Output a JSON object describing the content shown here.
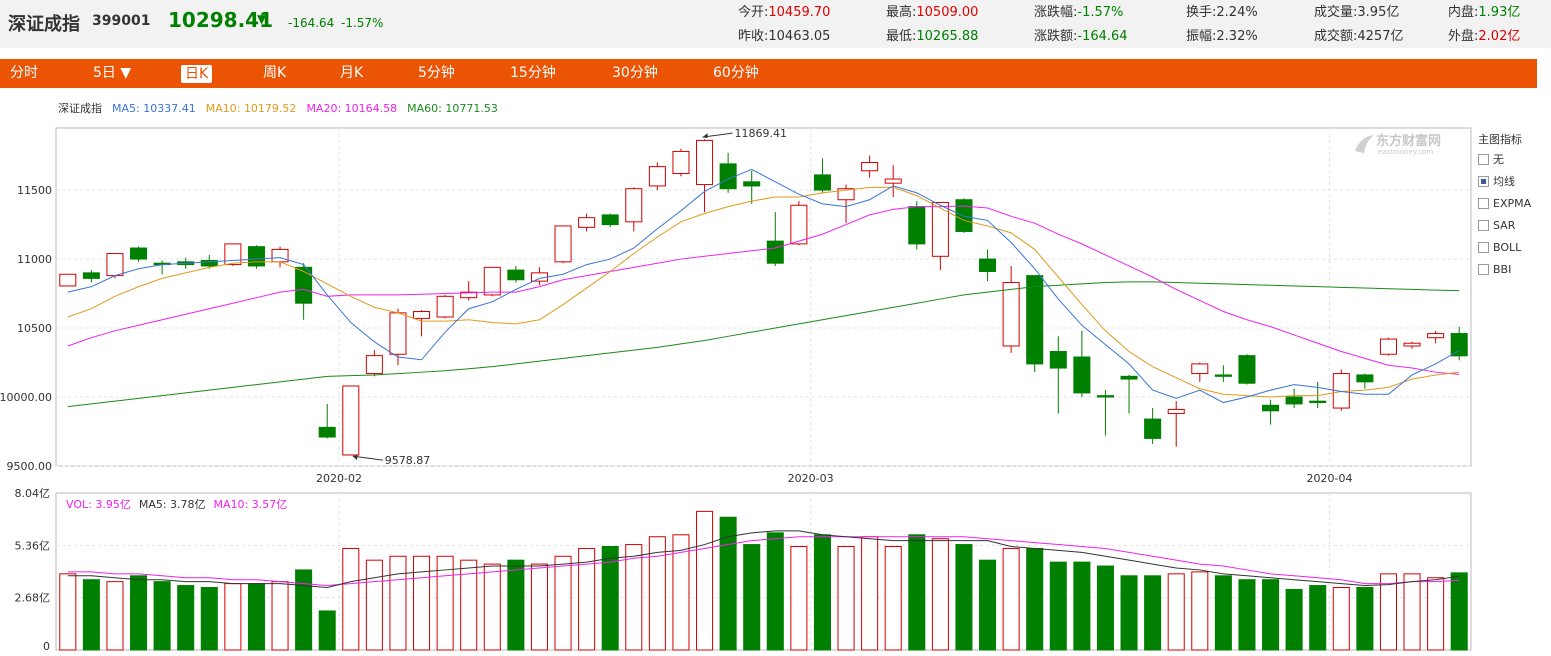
{
  "header": {
    "name": "深证成指",
    "code": "399001",
    "price": "10298.41",
    "arrow": "▼",
    "change": "-164.64",
    "change_pct": "-1.57%",
    "stats": [
      {
        "label": "今开:",
        "value": "10459.70",
        "color": "#e00000"
      },
      {
        "label": "最高:",
        "value": "10509.00",
        "color": "#e00000"
      },
      {
        "label": "涨跌幅:",
        "value": "-1.57%",
        "color": "#008000"
      },
      {
        "label": "换手:",
        "value": "2.24%",
        "color": "#333333"
      },
      {
        "label": "成交量:",
        "value": "3.95亿",
        "color": "#333333"
      },
      {
        "label": "内盘:",
        "value": "1.93亿",
        "color": "#008000"
      },
      {
        "label": "昨收:",
        "value": "10463.05",
        "color": "#333333"
      },
      {
        "label": "最低:",
        "value": "10265.88",
        "color": "#008000"
      },
      {
        "label": "涨跌额:",
        "value": "-164.64",
        "color": "#008000"
      },
      {
        "label": "振幅:",
        "value": "2.32%",
        "color": "#333333"
      },
      {
        "label": "成交额:",
        "value": "4257亿",
        "color": "#333333"
      },
      {
        "label": "外盘:",
        "value": "2.02亿",
        "color": "#e00000"
      }
    ]
  },
  "tabs": [
    {
      "label": "分时"
    },
    {
      "label": "5日 ▼"
    },
    {
      "label": "日K"
    },
    {
      "label": "周K"
    },
    {
      "label": "月K"
    },
    {
      "label": "5分钟"
    },
    {
      "label": "15分钟"
    },
    {
      "label": "30分钟"
    },
    {
      "label": "60分钟"
    }
  ],
  "indicator_panel": {
    "title": "主图指标",
    "items": [
      {
        "label": "无",
        "checked": false
      },
      {
        "label": "均线",
        "checked": true
      },
      {
        "label": "EXPMA",
        "checked": false
      },
      {
        "label": "SAR",
        "checked": false
      },
      {
        "label": "BOLL",
        "checked": false
      },
      {
        "label": "BBI",
        "checked": false
      }
    ]
  },
  "logo": {
    "text": "东方财富网",
    "subtext": "eastmoney.com"
  },
  "colors": {
    "up": "#d40000",
    "down": "#008000",
    "ma5": "#3a73d6",
    "ma10": "#e09a1a",
    "ma20": "#ee22ee",
    "ma60": "#1a8a1a",
    "vol_ma5": "#333333",
    "accent": "#ea5404"
  },
  "chart_data": [
    {
      "type": "candlestick",
      "title": "深证成指",
      "ylim": [
        9500,
        11950
      ],
      "yticks": [
        "9500.00",
        "10000.00",
        "10500",
        "11000",
        "11500"
      ],
      "x_labels": [
        {
          "label": "2020-02",
          "index": 11.5
        },
        {
          "label": "2020-03",
          "index": 31.5
        },
        {
          "label": "2020-04",
          "index": 53.5
        }
      ],
      "legend": [
        {
          "name": "MA5",
          "value": "10337.41"
        },
        {
          "name": "MA10",
          "value": "10179.52"
        },
        {
          "name": "MA20",
          "value": "10164.58"
        },
        {
          "name": "MA60",
          "value": "10771.53"
        }
      ],
      "annotations": [
        {
          "text": "11869.41",
          "index": 27,
          "value": 11869.41,
          "kind": "max"
        },
        {
          "text": "9578.87",
          "index": 12,
          "value": 9578.87,
          "kind": "min"
        }
      ],
      "candles": [
        {
          "o": 10805,
          "h": 10890,
          "l": 10805,
          "c": 10890
        },
        {
          "o": 10900,
          "h": 10920,
          "l": 10830,
          "c": 10860
        },
        {
          "o": 10880,
          "h": 11040,
          "l": 10860,
          "c": 11040
        },
        {
          "o": 11080,
          "h": 11090,
          "l": 10980,
          "c": 11000
        },
        {
          "o": 10970,
          "h": 10990,
          "l": 10890,
          "c": 10960
        },
        {
          "o": 10980,
          "h": 11010,
          "l": 10930,
          "c": 10960
        },
        {
          "o": 10990,
          "h": 11030,
          "l": 10930,
          "c": 10950
        },
        {
          "o": 10960,
          "h": 11110,
          "l": 10950,
          "c": 11110
        },
        {
          "o": 11090,
          "h": 11100,
          "l": 10930,
          "c": 10950
        },
        {
          "o": 10980,
          "h": 11090,
          "l": 10940,
          "c": 11070
        },
        {
          "o": 10940,
          "h": 10970,
          "l": 10560,
          "c": 10680
        },
        {
          "o": 9780,
          "h": 9950,
          "l": 9700,
          "c": 9710
        },
        {
          "o": 9580,
          "h": 10080,
          "l": 9579,
          "c": 10080
        },
        {
          "o": 10170,
          "h": 10340,
          "l": 10150,
          "c": 10300
        },
        {
          "o": 10310,
          "h": 10640,
          "l": 10230,
          "c": 10610
        },
        {
          "o": 10570,
          "h": 10630,
          "l": 10440,
          "c": 10620
        },
        {
          "o": 10580,
          "h": 10740,
          "l": 10570,
          "c": 10730
        },
        {
          "o": 10720,
          "h": 10840,
          "l": 10700,
          "c": 10760
        },
        {
          "o": 10740,
          "h": 10940,
          "l": 10730,
          "c": 10940
        },
        {
          "o": 10920,
          "h": 10950,
          "l": 10830,
          "c": 10850
        },
        {
          "o": 10840,
          "h": 10940,
          "l": 10810,
          "c": 10900
        },
        {
          "o": 10980,
          "h": 11240,
          "l": 10970,
          "c": 11240
        },
        {
          "o": 11230,
          "h": 11330,
          "l": 11200,
          "c": 11300
        },
        {
          "o": 11320,
          "h": 11330,
          "l": 11230,
          "c": 11250
        },
        {
          "o": 11270,
          "h": 11520,
          "l": 11200,
          "c": 11510
        },
        {
          "o": 11530,
          "h": 11700,
          "l": 11500,
          "c": 11670
        },
        {
          "o": 11620,
          "h": 11800,
          "l": 11600,
          "c": 11780
        },
        {
          "o": 11540,
          "h": 11869.41,
          "l": 11340,
          "c": 11860
        },
        {
          "o": 11690,
          "h": 11770,
          "l": 11480,
          "c": 11510
        },
        {
          "o": 11560,
          "h": 11640,
          "l": 11400,
          "c": 11530
        },
        {
          "o": 11130,
          "h": 11340,
          "l": 10950,
          "c": 10970
        },
        {
          "o": 11110,
          "h": 11420,
          "l": 11100,
          "c": 11390
        },
        {
          "o": 11610,
          "h": 11730,
          "l": 11480,
          "c": 11500
        },
        {
          "o": 11430,
          "h": 11540,
          "l": 11260,
          "c": 11510
        },
        {
          "o": 11640,
          "h": 11750,
          "l": 11590,
          "c": 11700
        },
        {
          "o": 11550,
          "h": 11680,
          "l": 11450,
          "c": 11580
        },
        {
          "o": 11380,
          "h": 11420,
          "l": 11070,
          "c": 11110
        },
        {
          "o": 11020,
          "h": 11410,
          "l": 10920,
          "c": 11410
        },
        {
          "o": 11430,
          "h": 11440,
          "l": 11190,
          "c": 11200
        },
        {
          "o": 11000,
          "h": 11070,
          "l": 10840,
          "c": 10910
        },
        {
          "o": 10370,
          "h": 10950,
          "l": 10320,
          "c": 10830
        },
        {
          "o": 10880,
          "h": 10880,
          "l": 10180,
          "c": 10240
        },
        {
          "o": 10330,
          "h": 10440,
          "l": 9880,
          "c": 10210
        },
        {
          "o": 10290,
          "h": 10480,
          "l": 10000,
          "c": 10030
        },
        {
          "o": 10010,
          "h": 10050,
          "l": 9720,
          "c": 10000
        },
        {
          "o": 10150,
          "h": 10160,
          "l": 9880,
          "c": 10130
        },
        {
          "o": 9840,
          "h": 9920,
          "l": 9660,
          "c": 9700
        },
        {
          "o": 9880,
          "h": 9970,
          "l": 9640,
          "c": 9910
        },
        {
          "o": 10170,
          "h": 10250,
          "l": 10110,
          "c": 10240
        },
        {
          "o": 10160,
          "h": 10230,
          "l": 10110,
          "c": 10150
        },
        {
          "o": 10300,
          "h": 10310,
          "l": 10090,
          "c": 10100
        },
        {
          "o": 9940,
          "h": 9980,
          "l": 9800,
          "c": 9900
        },
        {
          "o": 10000,
          "h": 10060,
          "l": 9920,
          "c": 9950
        },
        {
          "o": 9970,
          "h": 10110,
          "l": 9920,
          "c": 9960
        },
        {
          "o": 9920,
          "h": 10200,
          "l": 9900,
          "c": 10170
        },
        {
          "o": 10160,
          "h": 10170,
          "l": 10060,
          "c": 10110
        },
        {
          "o": 10310,
          "h": 10430,
          "l": 10300,
          "c": 10420
        },
        {
          "o": 10370,
          "h": 10400,
          "l": 10350,
          "c": 10390
        },
        {
          "o": 10430,
          "h": 10480,
          "l": 10390,
          "c": 10460
        },
        {
          "o": 10460,
          "h": 10509,
          "l": 10265.88,
          "c": 10298.41
        }
      ],
      "ma5": [
        10760,
        10800,
        10880,
        10930,
        10960,
        10970,
        10980,
        10990,
        11000,
        11010,
        10960,
        10740,
        10540,
        10400,
        10290,
        10270,
        10470,
        10640,
        10690,
        10780,
        10860,
        10890,
        10960,
        11000,
        11080,
        11220,
        11350,
        11490,
        11580,
        11650,
        11560,
        11470,
        11400,
        11380,
        11430,
        11530,
        11480,
        11390,
        11310,
        11280,
        11120,
        10930,
        10710,
        10520,
        10380,
        10240,
        10050,
        9990,
        10050,
        9960,
        10000,
        10050,
        10090,
        10070,
        10040,
        10020,
        10020,
        10160,
        10240,
        10337.41
      ],
      "ma10": [
        10580,
        10640,
        10730,
        10800,
        10860,
        10900,
        10940,
        10970,
        10980,
        10980,
        10910,
        10820,
        10730,
        10650,
        10610,
        10550,
        10550,
        10560,
        10540,
        10530,
        10560,
        10670,
        10790,
        10910,
        11040,
        11160,
        11270,
        11330,
        11380,
        11420,
        11450,
        11450,
        11480,
        11500,
        11520,
        11520,
        11460,
        11370,
        11280,
        11240,
        11190,
        11070,
        10870,
        10670,
        10480,
        10330,
        10220,
        10140,
        10060,
        10020,
        10010,
        10000,
        10010,
        10010,
        10040,
        10050,
        10070,
        10130,
        10160,
        10179.52
      ],
      "ma20": [
        10370,
        10430,
        10480,
        10520,
        10560,
        10600,
        10640,
        10680,
        10720,
        10760,
        10780,
        10730,
        10740,
        10740,
        10740,
        10745,
        10750,
        10755,
        10760,
        10760,
        10800,
        10850,
        10880,
        10910,
        10940,
        10970,
        11000,
        11020,
        11040,
        11060,
        11080,
        11130,
        11180,
        11250,
        11320,
        11360,
        11380,
        11380,
        11385,
        11370,
        11310,
        11260,
        11180,
        11110,
        11030,
        10950,
        10870,
        10780,
        10700,
        10620,
        10560,
        10510,
        10450,
        10390,
        10330,
        10280,
        10230,
        10210,
        10180,
        10164.58
      ],
      "ma60": [
        9930,
        9950,
        9970,
        9990,
        10010,
        10030,
        10050,
        10070,
        10090,
        10110,
        10130,
        10150,
        10155,
        10160,
        10170,
        10180,
        10190,
        10205,
        10220,
        10240,
        10260,
        10280,
        10300,
        10320,
        10340,
        10360,
        10385,
        10410,
        10440,
        10470,
        10500,
        10530,
        10560,
        10590,
        10620,
        10650,
        10680,
        10710,
        10740,
        10760,
        10780,
        10800,
        10810,
        10820,
        10830,
        10835,
        10835,
        10830,
        10825,
        10820,
        10815,
        10810,
        10805,
        10800,
        10795,
        10790,
        10785,
        10780,
        10775,
        10771.53
      ]
    },
    {
      "type": "bar",
      "title": "",
      "unit": "亿",
      "ylim": [
        0,
        8.04
      ],
      "yticks": [
        "0",
        "2.68亿",
        "5.36亿",
        "8.04亿"
      ],
      "legend": [
        {
          "name": "VOL",
          "value": "3.95亿"
        },
        {
          "name": "MA5",
          "value": "3.78亿"
        },
        {
          "name": "MA10",
          "value": "3.57亿"
        }
      ],
      "values": [
        3.9,
        3.6,
        3.5,
        3.8,
        3.5,
        3.3,
        3.2,
        3.4,
        3.4,
        3.5,
        4.1,
        2.0,
        5.2,
        4.6,
        4.8,
        4.8,
        4.8,
        4.6,
        4.4,
        4.6,
        4.4,
        4.8,
        5.2,
        5.3,
        5.4,
        5.8,
        5.9,
        7.1,
        6.8,
        5.4,
        6.0,
        5.3,
        5.9,
        5.3,
        5.8,
        5.3,
        5.9,
        5.7,
        5.4,
        4.6,
        5.2,
        5.2,
        4.5,
        4.5,
        4.3,
        3.8,
        3.8,
        3.9,
        4.0,
        3.8,
        3.6,
        3.6,
        3.1,
        3.3,
        3.2,
        3.2,
        3.9,
        3.9,
        3.7,
        3.95
      ],
      "ma5": [
        3.8,
        3.8,
        3.7,
        3.6,
        3.6,
        3.5,
        3.5,
        3.4,
        3.4,
        3.4,
        3.3,
        3.2,
        3.5,
        3.7,
        3.9,
        4.0,
        4.1,
        4.2,
        4.3,
        4.3,
        4.3,
        4.4,
        4.5,
        4.7,
        4.8,
        5.0,
        5.1,
        5.4,
        5.8,
        6.0,
        6.1,
        6.1,
        5.9,
        5.8,
        5.7,
        5.6,
        5.6,
        5.6,
        5.6,
        5.6,
        5.3,
        5.2,
        5.1,
        5.0,
        4.8,
        4.6,
        4.4,
        4.2,
        4.1,
        3.9,
        3.8,
        3.7,
        3.6,
        3.5,
        3.4,
        3.3,
        3.35,
        3.5,
        3.6,
        3.78
      ],
      "ma10": [
        4.0,
        4.0,
        3.9,
        3.9,
        3.8,
        3.7,
        3.7,
        3.6,
        3.6,
        3.5,
        3.4,
        3.3,
        3.4,
        3.5,
        3.6,
        3.7,
        3.8,
        3.9,
        4.0,
        4.1,
        4.2,
        4.3,
        4.4,
        4.5,
        4.7,
        4.8,
        5.0,
        5.2,
        5.4,
        5.6,
        5.7,
        5.8,
        5.8,
        5.8,
        5.8,
        5.8,
        5.8,
        5.8,
        5.8,
        5.7,
        5.6,
        5.5,
        5.4,
        5.3,
        5.2,
        5.0,
        4.8,
        4.6,
        4.4,
        4.3,
        4.1,
        3.9,
        3.8,
        3.7,
        3.6,
        3.4,
        3.4,
        3.5,
        3.5,
        3.57
      ]
    }
  ]
}
